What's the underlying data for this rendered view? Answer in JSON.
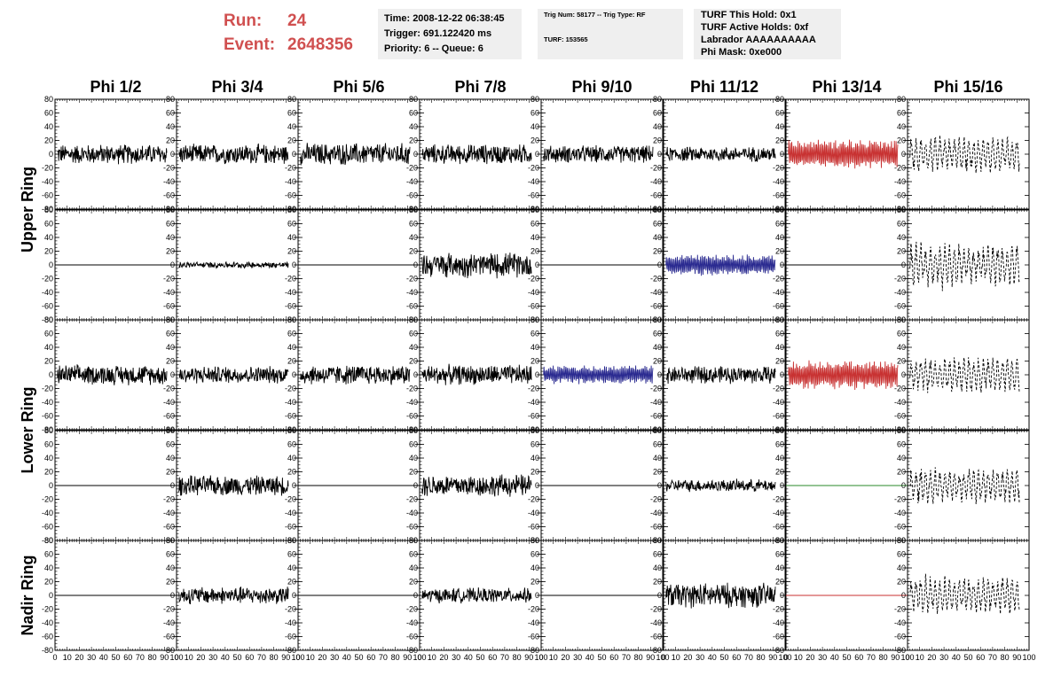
{
  "header": {
    "run_label": "Run:",
    "run_value": "24",
    "event_label": "Event:",
    "event_value": "2648356"
  },
  "info_time": {
    "time": "Time: 2008-12-22 06:38:45",
    "trigger": "Trigger: 691.122420 ms",
    "priority": "Priority: 6 -- Queue: 6"
  },
  "info_trig": {
    "trig": "Trig Num: 58177 -- Trig Type: RF",
    "turf": "TURF: 153565"
  },
  "info_turf": {
    "hold": "TURF This Hold: 0x1",
    "active": "TURF Active Holds: 0xf",
    "labrador": "Labrador AAAAAAAAAA",
    "mask": "Phi Mask: 0xe000"
  },
  "colors": {
    "title_red": "#d05050",
    "black": "#000000",
    "red": "#c83232",
    "blue": "#2a2a90",
    "green": "#2a8a2a"
  },
  "chart_data": {
    "type": "line",
    "columns": [
      "Phi 1/2",
      "Phi 3/4",
      "Phi 5/6",
      "Phi 7/8",
      "Phi 9/10",
      "Phi 11/12",
      "Phi 13/14",
      "Phi 15/16"
    ],
    "row_groups": [
      {
        "label": "Upper Ring",
        "rows": [
          0,
          1
        ]
      },
      {
        "label": "Lower Ring",
        "rows": [
          2,
          3
        ]
      },
      {
        "label": "Nadir Ring",
        "rows": [
          4
        ]
      }
    ],
    "ylim": [
      -80,
      80
    ],
    "xlim": [
      0,
      100
    ],
    "yticks": [
      "80",
      "60",
      "40",
      "20",
      "0",
      "-20",
      "-40",
      "-60",
      "-80"
    ],
    "xticks": [
      "0",
      "10",
      "20",
      "30",
      "40",
      "50",
      "60",
      "70",
      "80",
      "90",
      "100"
    ],
    "panels": [
      [
        {
          "style": "noise",
          "amp": 16,
          "color": "black",
          "x_end": 92
        },
        {
          "style": "noise",
          "amp": 16,
          "color": "black",
          "x_end": 92
        },
        {
          "style": "noise",
          "amp": 18,
          "color": "black",
          "x_end": 92
        },
        {
          "style": "noise",
          "amp": 16,
          "color": "black",
          "x_end": 92
        },
        {
          "style": "noise",
          "amp": 14,
          "color": "black",
          "x_end": 92
        },
        {
          "style": "noise",
          "amp": 12,
          "color": "black",
          "x_end": 92
        },
        {
          "style": "osc",
          "amp": 22,
          "color": "red",
          "x_end": 92
        },
        {
          "style": "dash",
          "amp": 24,
          "color": "black",
          "x_end": 92
        }
      ],
      [
        {
          "style": "flat",
          "amp": 0,
          "color": "black",
          "x_end": 100
        },
        {
          "style": "noise",
          "amp": 5,
          "color": "black",
          "x_end": 92
        },
        {
          "style": "flat",
          "amp": 0,
          "color": "black",
          "x_end": 100
        },
        {
          "style": "noise",
          "amp": 20,
          "color": "black",
          "x_end": 92
        },
        {
          "style": "flat",
          "amp": 0,
          "color": "black",
          "x_end": 100
        },
        {
          "style": "osc",
          "amp": 16,
          "color": "blue",
          "x_end": 92
        },
        {
          "style": "flat",
          "amp": 0,
          "color": "black",
          "x_end": 100
        },
        {
          "style": "dash",
          "amp": 30,
          "color": "black",
          "x_end": 92
        }
      ],
      [
        {
          "style": "noise",
          "amp": 16,
          "color": "black",
          "x_end": 92
        },
        {
          "style": "noise",
          "amp": 14,
          "color": "black",
          "x_end": 92
        },
        {
          "style": "noise",
          "amp": 16,
          "color": "black",
          "x_end": 92
        },
        {
          "style": "noise",
          "amp": 16,
          "color": "black",
          "x_end": 92
        },
        {
          "style": "osc",
          "amp": 14,
          "color": "blue",
          "x_end": 92
        },
        {
          "style": "noise",
          "amp": 14,
          "color": "black",
          "x_end": 92
        },
        {
          "style": "osc",
          "amp": 22,
          "color": "red",
          "x_end": 92
        },
        {
          "style": "dash",
          "amp": 24,
          "color": "black",
          "x_end": 92
        }
      ],
      [
        {
          "style": "flat",
          "amp": 0,
          "color": "black",
          "x_end": 100
        },
        {
          "style": "noise",
          "amp": 16,
          "color": "black",
          "x_end": 92
        },
        {
          "style": "flat",
          "amp": 0,
          "color": "black",
          "x_end": 100
        },
        {
          "style": "noise",
          "amp": 18,
          "color": "black",
          "x_end": 92
        },
        {
          "style": "flat",
          "amp": 0,
          "color": "black",
          "x_end": 100
        },
        {
          "style": "noise",
          "amp": 10,
          "color": "black",
          "x_end": 92
        },
        {
          "style": "flat",
          "amp": 0,
          "color": "green",
          "x_end": 100
        },
        {
          "style": "dash",
          "amp": 24,
          "color": "black",
          "x_end": 92
        }
      ],
      [
        {
          "style": "flat",
          "amp": 0,
          "color": "black",
          "x_end": 100
        },
        {
          "style": "noise",
          "amp": 14,
          "color": "black",
          "x_end": 92
        },
        {
          "style": "flat",
          "amp": 0,
          "color": "black",
          "x_end": 100
        },
        {
          "style": "noise",
          "amp": 12,
          "color": "black",
          "x_end": 92
        },
        {
          "style": "flat",
          "amp": 0,
          "color": "black",
          "x_end": 100
        },
        {
          "style": "noise",
          "amp": 20,
          "color": "black",
          "x_end": 92
        },
        {
          "style": "flat",
          "amp": 0,
          "color": "red",
          "x_end": 100
        },
        {
          "style": "dash",
          "amp": 26,
          "color": "black",
          "x_end": 92
        }
      ]
    ]
  }
}
